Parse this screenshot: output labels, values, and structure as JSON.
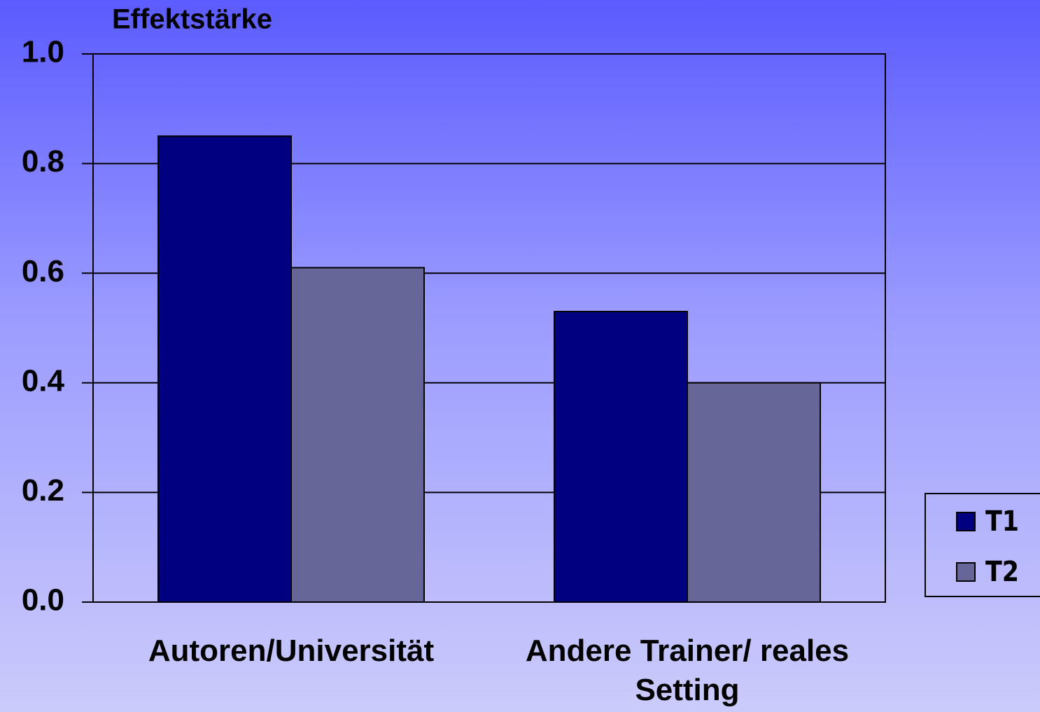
{
  "chart_data": {
    "type": "bar",
    "title": "Effektstärke",
    "categories": [
      "Autoren/Universität",
      "Andere Trainer/ reales Setting"
    ],
    "series": [
      {
        "name": "T1",
        "color": "#000080",
        "values": [
          0.85,
          0.53
        ]
      },
      {
        "name": "T2",
        "color": "#666699",
        "values": [
          0.61,
          0.4
        ]
      }
    ],
    "ylim": [
      0,
      1
    ],
    "yticks": [
      {
        "value": 0,
        "label": "0.0"
      },
      0.2,
      0.4,
      0.6,
      0.8,
      {
        "value": 1,
        "label": "1.0"
      }
    ],
    "grid": true,
    "legend": "right"
  }
}
